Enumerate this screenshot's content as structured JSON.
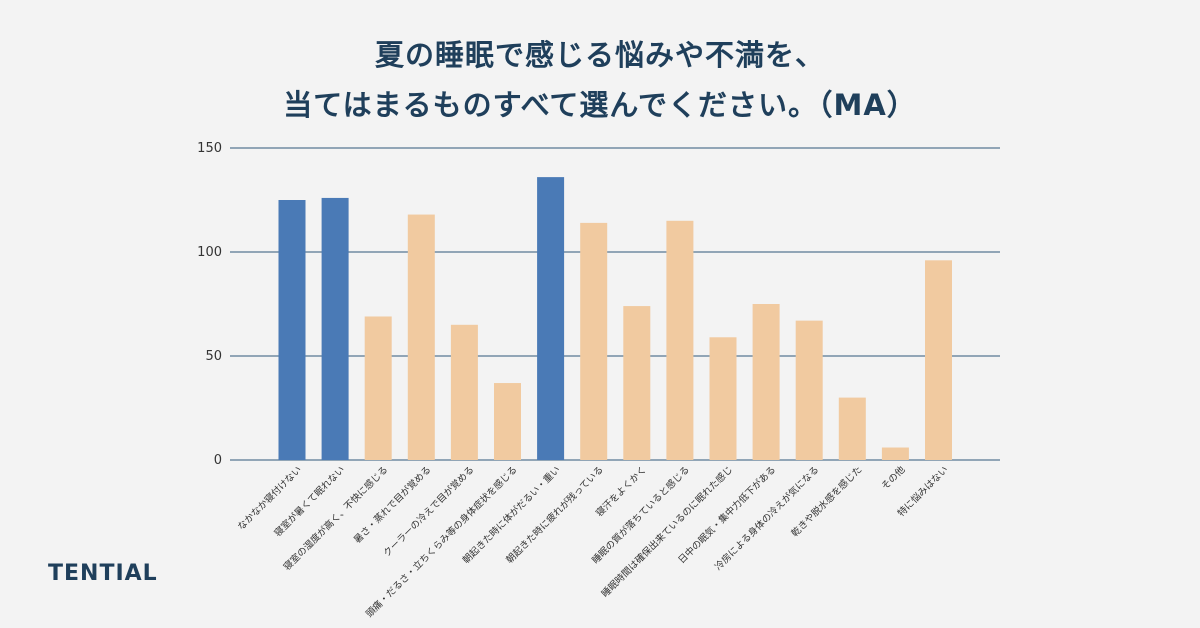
{
  "title_lines": [
    "夏の睡眠で感じる悩みや不満を、",
    "当てはまるものすべて選んでください。（MA）"
  ],
  "brand": "TENTIAL",
  "colors": {
    "highlight": "#4a7ab6",
    "normal": "#f1caa0",
    "grid": "#2f5778",
    "tick_text": "#333333",
    "title": "#1f3f5b"
  },
  "chart_data": {
    "type": "bar",
    "title": "夏の睡眠で感じる悩みや不満を、当てはまるものすべて選んでください。（MA）",
    "xlabel": "",
    "ylabel": "",
    "ylim": [
      0,
      150
    ],
    "yticks": [
      0,
      50,
      100,
      150
    ],
    "grid": true,
    "categories": [
      "なかなか寝付けない",
      "寝室が暑くて眠れない",
      "寝室の湿度が高く、不快に感じる",
      "暑さ・蒸れで目が覚める",
      "クーラーの冷えで目が覚める",
      "頭痛・だるさ・立ちくらみ等の身体症状を感じる",
      "朝起きた時に体がだるい・重い",
      "朝起きた時に疲れが残っている",
      "寝汗をよくかく",
      "睡眠の質が落ちていると感じる",
      "睡眠時間は確保出来ているのに眠れた感じ",
      "日中の眠気・集中力低下がある",
      "冷房による身体の冷えが気になる",
      "乾きや脱水感を感じた",
      "その他",
      "特に悩みはない"
    ],
    "values": [
      125,
      126,
      69,
      118,
      65,
      37,
      136,
      114,
      74,
      115,
      59,
      75,
      67,
      30,
      6,
      96
    ],
    "highlighted": [
      true,
      true,
      false,
      false,
      false,
      false,
      true,
      false,
      false,
      false,
      false,
      false,
      false,
      false,
      false,
      false
    ]
  }
}
